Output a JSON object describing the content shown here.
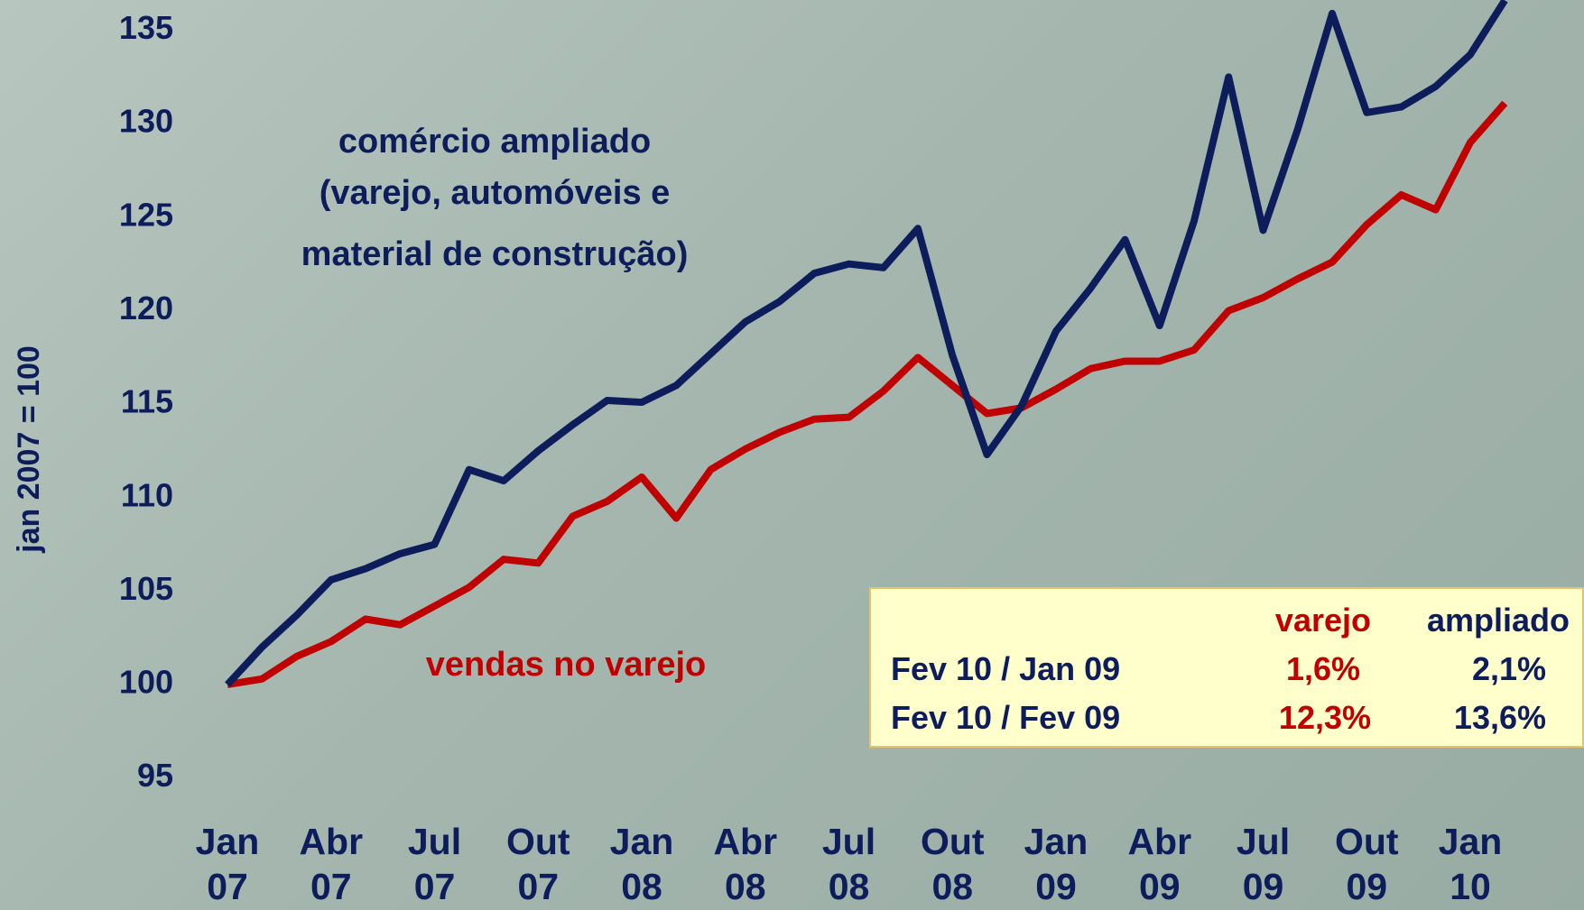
{
  "chart_data": {
    "type": "line",
    "y_label": "jan 2007 = 100",
    "annotations": [
      "comércio ampliado",
      "(varejo, automóveis e",
      "material de construção)",
      "vendas no varejo"
    ],
    "categories": [
      "Jan 07",
      null,
      null,
      "Abr 07",
      null,
      null,
      "Jul 07",
      null,
      null,
      "Out 07",
      null,
      null,
      "Jan 08",
      null,
      null,
      "Abr 08",
      null,
      null,
      "Jul 08",
      null,
      null,
      "Out 08",
      null,
      null,
      "Jan 09",
      null,
      null,
      "Abr 09",
      null,
      null,
      "Jul 09",
      null,
      null,
      "Out 09",
      null,
      null,
      "Jan 10",
      null
    ],
    "series": [
      {
        "color": "#0d1d5c",
        "values": [
          100,
          102,
          103.7,
          105.6,
          106.2,
          107,
          107.5,
          111.5,
          110.9,
          112.5,
          113.9,
          115.2,
          115.1,
          116,
          117.7,
          119.4,
          120.5,
          122,
          122.5,
          122.3,
          124.4,
          117.6,
          112.3,
          114.9,
          118.9,
          121.2,
          123.8,
          119.2,
          124.8,
          132.5,
          124.3,
          129.7,
          135.9,
          130.6,
          130.9,
          132,
          133.7,
          136.6
        ]
      },
      {
        "color": "#c00000",
        "values": [
          100,
          100.3,
          101.5,
          102.3,
          103.5,
          103.2,
          104.2,
          105.2,
          106.7,
          106.5,
          109,
          109.8,
          111.1,
          108.9,
          111.5,
          112.6,
          113.5,
          114.2,
          114.3,
          115.7,
          117.5,
          116,
          114.5,
          114.8,
          115.8,
          116.9,
          117.3,
          117.3,
          117.9,
          120,
          120.7,
          121.7,
          122.6,
          124.6,
          126.2,
          125.4,
          129,
          131.1
        ]
      }
    ],
    "ylim": [
      93.2,
      136.62
    ],
    "yticks": [
      95,
      100,
      105,
      110,
      115,
      120,
      125,
      130,
      135
    ],
    "grid": false
  },
  "table": {
    "header": [
      "varejo",
      "ampliado"
    ],
    "rows": [
      [
        "Fev 10 / Jan 09",
        "1,6%",
        "2,1%"
      ],
      [
        "Fev 10 / Fev 09",
        "12,3%",
        "13,6%"
      ]
    ]
  }
}
